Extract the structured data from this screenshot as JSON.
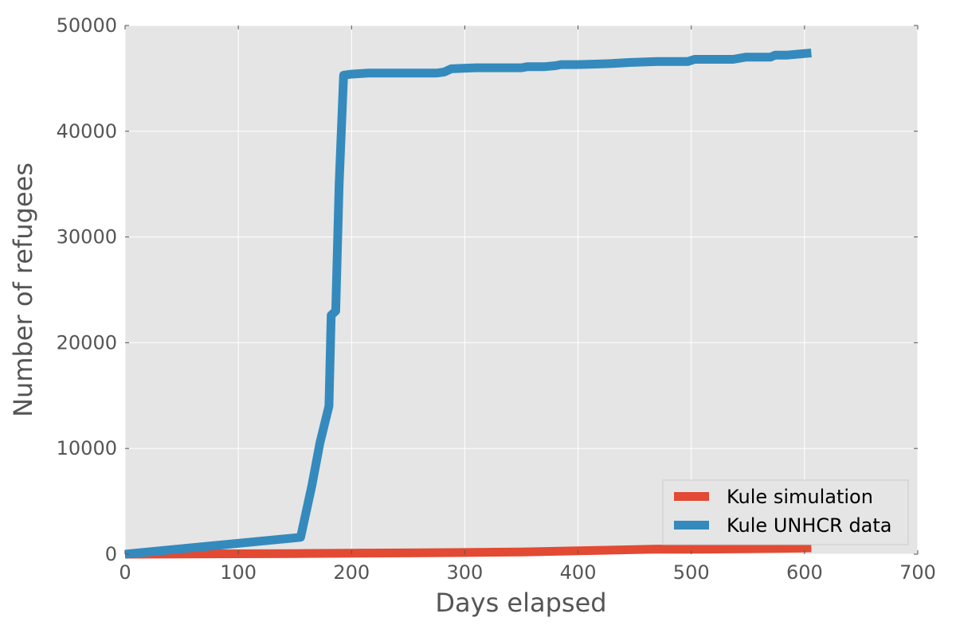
{
  "chart_data": {
    "type": "line",
    "title": "",
    "xlabel": "Days elapsed",
    "ylabel": "Number of refugees",
    "xlim": [
      0,
      700
    ],
    "ylim": [
      0,
      50000
    ],
    "xticks": [
      0,
      100,
      200,
      300,
      400,
      500,
      600,
      700
    ],
    "yticks": [
      0,
      10000,
      20000,
      30000,
      40000,
      50000
    ],
    "grid": true,
    "legend_position": "lower-right",
    "series": [
      {
        "name": "Kule simulation",
        "color": "#E24A33",
        "x": [
          0,
          50,
          100,
          150,
          200,
          250,
          300,
          350,
          400,
          450,
          470,
          500,
          550,
          600,
          606
        ],
        "y": [
          0,
          20,
          40,
          60,
          90,
          120,
          160,
          210,
          320,
          430,
          480,
          470,
          520,
          590,
          600
        ]
      },
      {
        "name": "Kule UNHCR data",
        "color": "#348ABD",
        "x": [
          0,
          155,
          165,
          172,
          180,
          182,
          186,
          189,
          193,
          200,
          215,
          235,
          255,
          275,
          282,
          288,
          310,
          330,
          350,
          355,
          370,
          380,
          385,
          400,
          430,
          445,
          470,
          497,
          503,
          537,
          548,
          570,
          574,
          585,
          595,
          606
        ],
        "y": [
          0,
          1600,
          6500,
          10500,
          14000,
          22600,
          23000,
          35000,
          45300,
          45400,
          45500,
          45500,
          45500,
          45500,
          45600,
          45900,
          46000,
          46000,
          46000,
          46100,
          46100,
          46200,
          46300,
          46300,
          46400,
          46500,
          46600,
          46600,
          46800,
          46800,
          47000,
          47000,
          47200,
          47200,
          47300,
          47400
        ]
      }
    ]
  }
}
